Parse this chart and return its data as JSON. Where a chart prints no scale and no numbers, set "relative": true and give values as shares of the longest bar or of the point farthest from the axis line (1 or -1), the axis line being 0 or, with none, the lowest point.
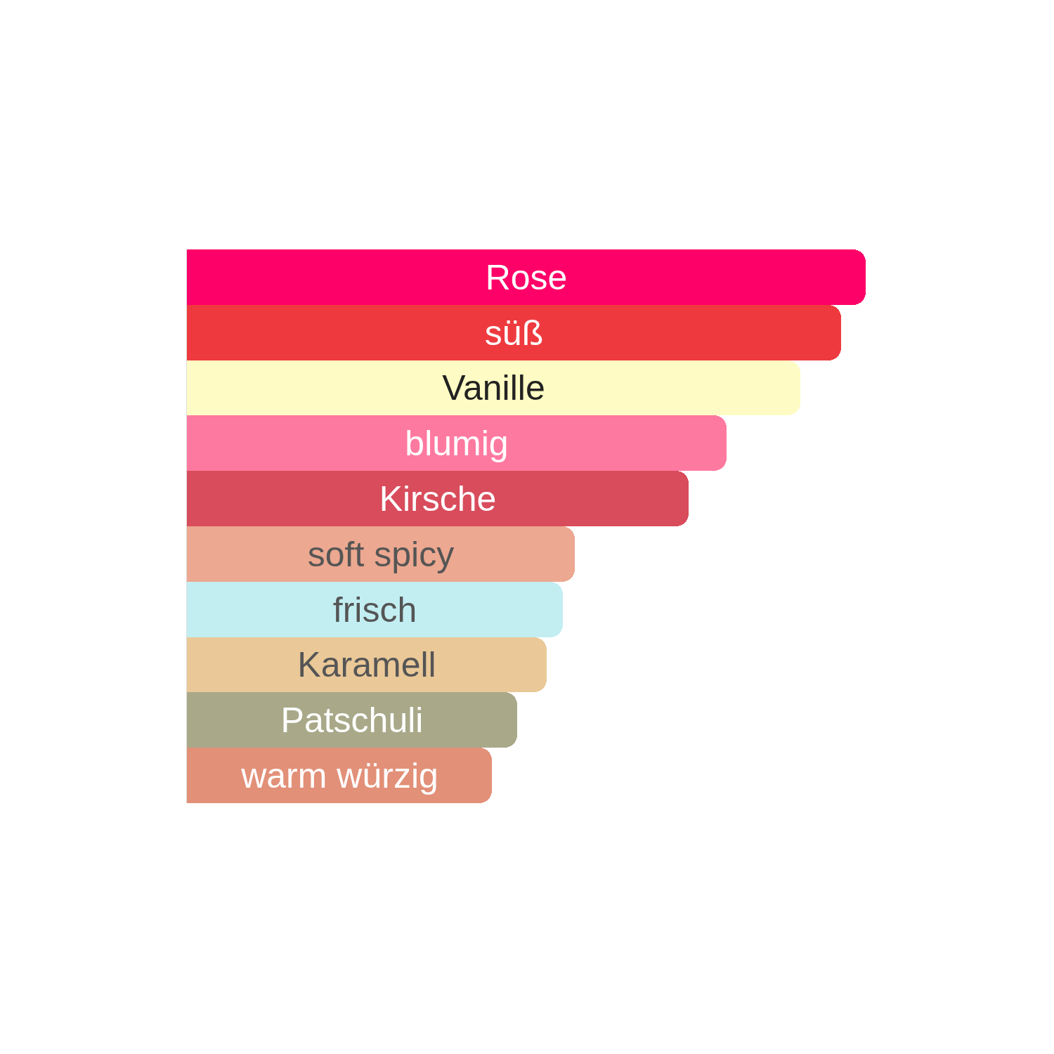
{
  "chart_data": {
    "type": "bar",
    "orientation": "horizontal",
    "relative": true,
    "categories": [
      "Rose",
      "süß",
      "Vanille",
      "blumig",
      "Kirsche",
      "soft spicy",
      "frisch",
      "Karamell",
      "Patschuli",
      "warm würzig"
    ],
    "values": [
      1,
      0.964,
      0.904,
      0.795,
      0.739,
      0.571,
      0.554,
      0.53,
      0.487,
      0.449
    ],
    "colors": [
      "#fe0168",
      "#ee3a3e",
      "#fefcc4",
      "#fe79a0",
      "#d84c5c",
      "#eca890",
      "#c2eef2",
      "#eac898",
      "#a9a98a",
      "#e29078"
    ],
    "legend": false
  }
}
